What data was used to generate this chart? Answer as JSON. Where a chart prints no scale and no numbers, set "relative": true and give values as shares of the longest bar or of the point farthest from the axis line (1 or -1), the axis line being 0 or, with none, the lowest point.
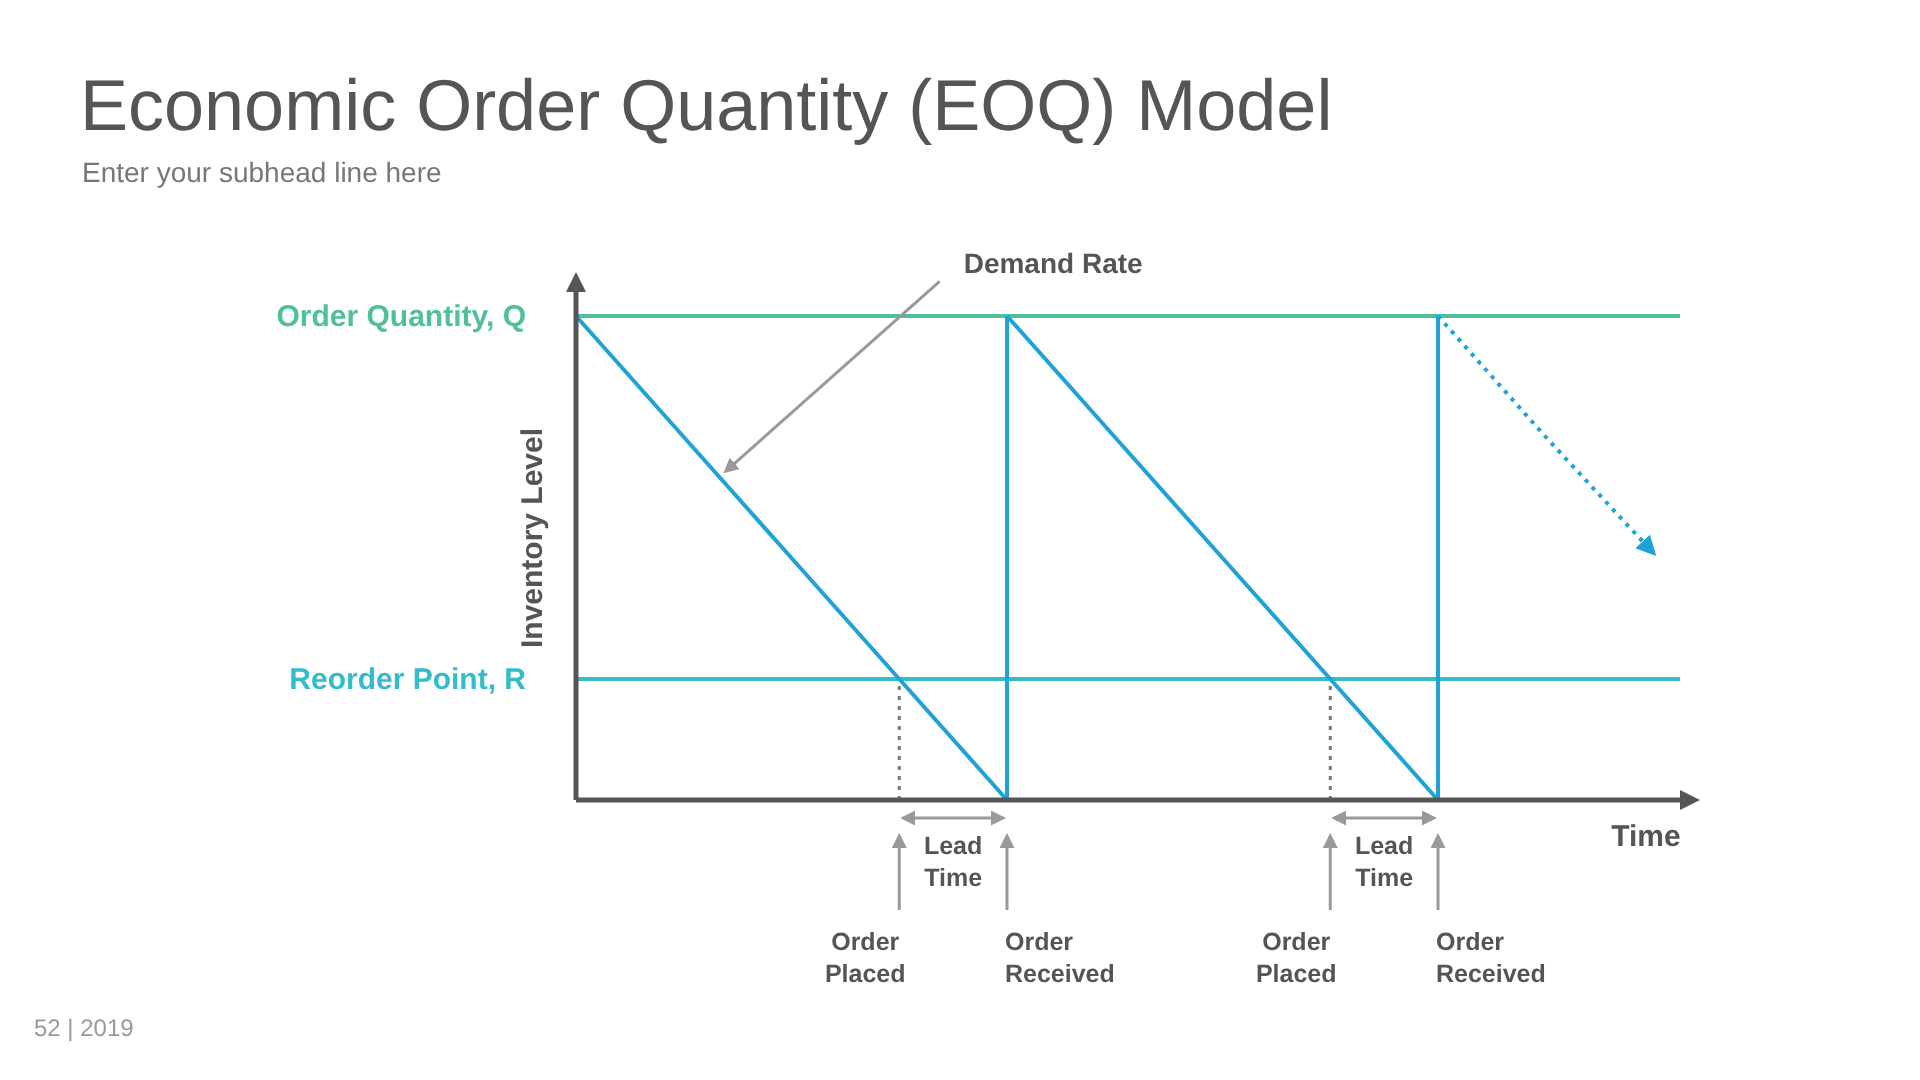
{
  "chart_data": {
    "type": "line",
    "title": "Economic Order Quantity (EOQ) Model",
    "subtitle": "Enter your subhead line here",
    "xlabel": "Time",
    "ylabel": "Inventory Level",
    "relative": true,
    "marker": "none",
    "categories": [
      null,
      null,
      null,
      null,
      null,
      null,
      null,
      null,
      null,
      null,
      null
    ],
    "series": [
      {
        "color": "#1fa3d6",
        "values": [
          1,
          0.75,
          0.5,
          0.25,
          0,
          null,
          null,
          null,
          null,
          null,
          null
        ],
        "line_style": "solid"
      },
      {
        "color": "#1fa3d6",
        "values": [
          null,
          null,
          null,
          null,
          1,
          0.75,
          0.5,
          0.25,
          0,
          null,
          null
        ],
        "line_style": "solid"
      },
      {
        "color": "#1fa3d6",
        "values": [
          null,
          null,
          null,
          null,
          null,
          null,
          null,
          null,
          1,
          0.75,
          0.51
        ],
        "line_style": "dotted"
      }
    ],
    "ref_lines": [
      {
        "axis": "y",
        "value": 1,
        "label": "Order Quantity, Q",
        "color": "#4fc09a"
      },
      {
        "axis": "y",
        "value": 0.25,
        "label": "Reorder Point, R",
        "color": "#34bccb"
      }
    ],
    "annotations": [
      "Demand Rate",
      "Lead Time",
      "Order Placed",
      "Order Received",
      "Lead Time",
      "Order Placed",
      "Order Received",
      "52 | 2019"
    ]
  }
}
